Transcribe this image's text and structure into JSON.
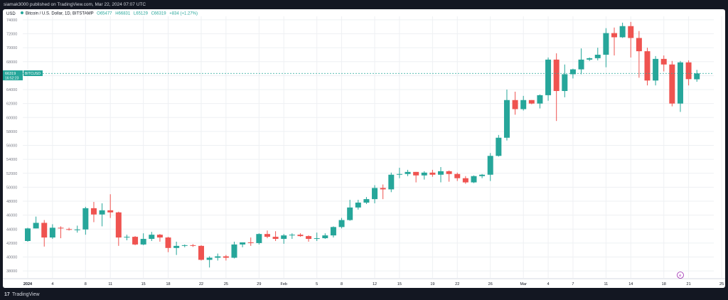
{
  "header": {
    "publish_text": "siamak3000 published on TradingView.com, Mar 22, 2024 07:07 UTC"
  },
  "legend": {
    "title": "Bitcoin / U.S. Dollar, 1D, BITSTAMP",
    "open": "O65477",
    "high": "H66831",
    "low": "L65129",
    "close": "C66319",
    "change": "+834 (+1.27%)"
  },
  "currency_label": "USD",
  "price_tag": {
    "value": "66319",
    "countdown": "16:52:23",
    "symbol": "BITCUSD"
  },
  "watermark_label": "e",
  "footer": {
    "logo": "17",
    "brand": "TradingView"
  },
  "colors": {
    "up": "#26a69a",
    "down": "#ef5350",
    "grid": "#eef0f3",
    "text": "#787b86",
    "price_line": "#26a69a",
    "tag": "#26a69a"
  },
  "chart_data": {
    "type": "candlestick",
    "ylim": [
      37000,
      74500
    ],
    "y_ticks": [
      38000,
      40000,
      42000,
      44000,
      46000,
      48000,
      50000,
      52000,
      54000,
      56000,
      58000,
      60000,
      62000,
      64000,
      66000,
      68000,
      70000,
      72000,
      74000
    ],
    "x_ticks": [
      {
        "label": "2024",
        "day": 0
      },
      {
        "label": "4",
        "day": 3
      },
      {
        "label": "8",
        "day": 7
      },
      {
        "label": "11",
        "day": 10
      },
      {
        "label": "15",
        "day": 14
      },
      {
        "label": "18",
        "day": 17
      },
      {
        "label": "22",
        "day": 21
      },
      {
        "label": "25",
        "day": 24
      },
      {
        "label": "29",
        "day": 28
      },
      {
        "label": "Feb",
        "day": 31
      },
      {
        "label": "5",
        "day": 35
      },
      {
        "label": "8",
        "day": 38
      },
      {
        "label": "12",
        "day": 42
      },
      {
        "label": "15",
        "day": 45
      },
      {
        "label": "19",
        "day": 49
      },
      {
        "label": "22",
        "day": 52
      },
      {
        "label": "26",
        "day": 56
      },
      {
        "label": "Mar",
        "day": 60
      },
      {
        "label": "4",
        "day": 63
      },
      {
        "label": "7",
        "day": 66
      },
      {
        "label": "11",
        "day": 70
      },
      {
        "label": "14",
        "day": 73
      },
      {
        "label": "18",
        "day": 77
      },
      {
        "label": "21",
        "day": 80
      },
      {
        "label": "25",
        "day": 84
      }
    ],
    "last_price": 66319,
    "candles": [
      {
        "date": "2024-01-01",
        "o": 42300,
        "h": 44200,
        "l": 42200,
        "c": 44100
      },
      {
        "date": "2024-01-02",
        "o": 44100,
        "h": 45800,
        "l": 44100,
        "c": 44900
      },
      {
        "date": "2024-01-03",
        "o": 44900,
        "h": 45300,
        "l": 41500,
        "c": 42800
      },
      {
        "date": "2024-01-04",
        "o": 42800,
        "h": 44700,
        "l": 42600,
        "c": 44200
      },
      {
        "date": "2024-01-05",
        "o": 44200,
        "h": 44400,
        "l": 42700,
        "c": 44100
      },
      {
        "date": "2024-01-06",
        "o": 44000,
        "h": 44200,
        "l": 43800,
        "c": 43900
      },
      {
        "date": "2024-01-07",
        "o": 43900,
        "h": 44500,
        "l": 43500,
        "c": 43950
      },
      {
        "date": "2024-01-08",
        "o": 43950,
        "h": 47200,
        "l": 43200,
        "c": 47000
      },
      {
        "date": "2024-01-09",
        "o": 47000,
        "h": 47900,
        "l": 45000,
        "c": 46100
      },
      {
        "date": "2024-01-10",
        "o": 46100,
        "h": 47700,
        "l": 44400,
        "c": 46700
      },
      {
        "date": "2024-01-11",
        "o": 46700,
        "h": 49000,
        "l": 45600,
        "c": 46400
      },
      {
        "date": "2024-01-12",
        "o": 46400,
        "h": 46500,
        "l": 41600,
        "c": 42800
      },
      {
        "date": "2024-01-13",
        "o": 42800,
        "h": 43200,
        "l": 42400,
        "c": 42900
      },
      {
        "date": "2024-01-14",
        "o": 42900,
        "h": 43000,
        "l": 41700,
        "c": 41800
      },
      {
        "date": "2024-01-15",
        "o": 41800,
        "h": 43400,
        "l": 41700,
        "c": 42600
      },
      {
        "date": "2024-01-16",
        "o": 42600,
        "h": 43600,
        "l": 42300,
        "c": 43200
      },
      {
        "date": "2024-01-17",
        "o": 43200,
        "h": 43300,
        "l": 42200,
        "c": 42800
      },
      {
        "date": "2024-01-18",
        "o": 42800,
        "h": 42900,
        "l": 40700,
        "c": 41300
      },
      {
        "date": "2024-01-19",
        "o": 41300,
        "h": 42200,
        "l": 40300,
        "c": 41600
      },
      {
        "date": "2024-01-20",
        "o": 41600,
        "h": 41800,
        "l": 41400,
        "c": 41700
      },
      {
        "date": "2024-01-21",
        "o": 41700,
        "h": 41850,
        "l": 41450,
        "c": 41600
      },
      {
        "date": "2024-01-22",
        "o": 41600,
        "h": 41700,
        "l": 39500,
        "c": 39600
      },
      {
        "date": "2024-01-23",
        "o": 39600,
        "h": 40100,
        "l": 38500,
        "c": 39900
      },
      {
        "date": "2024-01-24",
        "o": 39900,
        "h": 40500,
        "l": 39500,
        "c": 40100
      },
      {
        "date": "2024-01-25",
        "o": 40100,
        "h": 40300,
        "l": 39500,
        "c": 39900
      },
      {
        "date": "2024-01-26",
        "o": 39900,
        "h": 42200,
        "l": 39800,
        "c": 41800
      },
      {
        "date": "2024-01-27",
        "o": 41800,
        "h": 42100,
        "l": 41400,
        "c": 42100
      },
      {
        "date": "2024-01-28",
        "o": 42100,
        "h": 42800,
        "l": 41600,
        "c": 42000
      },
      {
        "date": "2024-01-29",
        "o": 42000,
        "h": 43400,
        "l": 41800,
        "c": 43300
      },
      {
        "date": "2024-01-30",
        "o": 43300,
        "h": 43800,
        "l": 42700,
        "c": 42900
      },
      {
        "date": "2024-01-31",
        "o": 42900,
        "h": 43700,
        "l": 42300,
        "c": 42600
      },
      {
        "date": "2024-02-01",
        "o": 42600,
        "h": 43300,
        "l": 41900,
        "c": 43100
      },
      {
        "date": "2024-02-02",
        "o": 43100,
        "h": 43400,
        "l": 42600,
        "c": 43200
      },
      {
        "date": "2024-02-03",
        "o": 43200,
        "h": 43400,
        "l": 42900,
        "c": 43000
      },
      {
        "date": "2024-02-04",
        "o": 43000,
        "h": 43100,
        "l": 42200,
        "c": 42600
      },
      {
        "date": "2024-02-05",
        "o": 42600,
        "h": 43500,
        "l": 42300,
        "c": 42700
      },
      {
        "date": "2024-02-06",
        "o": 42700,
        "h": 43400,
        "l": 42600,
        "c": 43100
      },
      {
        "date": "2024-02-07",
        "o": 43100,
        "h": 44400,
        "l": 42800,
        "c": 44300
      },
      {
        "date": "2024-02-08",
        "o": 44300,
        "h": 45600,
        "l": 44100,
        "c": 45300
      },
      {
        "date": "2024-02-09",
        "o": 45300,
        "h": 48200,
        "l": 45200,
        "c": 47100
      },
      {
        "date": "2024-02-10",
        "o": 47100,
        "h": 48200,
        "l": 46800,
        "c": 47800
      },
      {
        "date": "2024-02-11",
        "o": 47800,
        "h": 48600,
        "l": 47600,
        "c": 48300
      },
      {
        "date": "2024-02-12",
        "o": 48300,
        "h": 50300,
        "l": 47700,
        "c": 49900
      },
      {
        "date": "2024-02-13",
        "o": 49900,
        "h": 50400,
        "l": 48300,
        "c": 49700
      },
      {
        "date": "2024-02-14",
        "o": 49700,
        "h": 52100,
        "l": 49300,
        "c": 51800
      },
      {
        "date": "2024-02-15",
        "o": 51800,
        "h": 52800,
        "l": 51300,
        "c": 51900
      },
      {
        "date": "2024-02-16",
        "o": 51900,
        "h": 52500,
        "l": 51600,
        "c": 52200
      },
      {
        "date": "2024-02-17",
        "o": 52200,
        "h": 52200,
        "l": 50700,
        "c": 51700
      },
      {
        "date": "2024-02-18",
        "o": 51700,
        "h": 52300,
        "l": 51100,
        "c": 52100
      },
      {
        "date": "2024-02-19",
        "o": 52100,
        "h": 52500,
        "l": 51500,
        "c": 51800
      },
      {
        "date": "2024-02-20",
        "o": 51800,
        "h": 52900,
        "l": 50700,
        "c": 52300
      },
      {
        "date": "2024-02-21",
        "o": 52300,
        "h": 52400,
        "l": 50800,
        "c": 51900
      },
      {
        "date": "2024-02-22",
        "o": 51900,
        "h": 52100,
        "l": 50900,
        "c": 51300
      },
      {
        "date": "2024-02-23",
        "o": 51300,
        "h": 51600,
        "l": 50500,
        "c": 50700
      },
      {
        "date": "2024-02-24",
        "o": 50700,
        "h": 51700,
        "l": 50600,
        "c": 51600
      },
      {
        "date": "2024-02-25",
        "o": 51600,
        "h": 51900,
        "l": 51300,
        "c": 51800
      },
      {
        "date": "2024-02-26",
        "o": 51800,
        "h": 54900,
        "l": 50900,
        "c": 54500
      },
      {
        "date": "2024-02-27",
        "o": 54500,
        "h": 57500,
        "l": 54400,
        "c": 57100
      },
      {
        "date": "2024-02-28",
        "o": 57100,
        "h": 64000,
        "l": 56700,
        "c": 62500
      },
      {
        "date": "2024-02-29",
        "o": 62500,
        "h": 63700,
        "l": 60400,
        "c": 61200
      },
      {
        "date": "2024-03-01",
        "o": 61200,
        "h": 63100,
        "l": 61000,
        "c": 62500
      },
      {
        "date": "2024-03-02",
        "o": 62500,
        "h": 62500,
        "l": 61900,
        "c": 62000
      },
      {
        "date": "2024-03-03",
        "o": 62000,
        "h": 63300,
        "l": 61300,
        "c": 63200
      },
      {
        "date": "2024-03-04",
        "o": 63200,
        "h": 68600,
        "l": 62400,
        "c": 68300
      },
      {
        "date": "2024-03-05",
        "o": 68300,
        "h": 69200,
        "l": 59500,
        "c": 63800
      },
      {
        "date": "2024-03-06",
        "o": 63800,
        "h": 67600,
        "l": 62900,
        "c": 66200
      },
      {
        "date": "2024-03-07",
        "o": 66200,
        "h": 67000,
        "l": 65600,
        "c": 66900
      },
      {
        "date": "2024-03-08",
        "o": 66900,
        "h": 69900,
        "l": 66200,
        "c": 68300
      },
      {
        "date": "2024-03-09",
        "o": 68300,
        "h": 68600,
        "l": 68100,
        "c": 68500
      },
      {
        "date": "2024-03-10",
        "o": 68500,
        "h": 70000,
        "l": 68200,
        "c": 69000
      },
      {
        "date": "2024-03-11",
        "o": 69000,
        "h": 72800,
        "l": 67200,
        "c": 72100
      },
      {
        "date": "2024-03-12",
        "o": 72100,
        "h": 72900,
        "l": 68900,
        "c": 71500
      },
      {
        "date": "2024-03-13",
        "o": 71500,
        "h": 73600,
        "l": 71400,
        "c": 73100
      },
      {
        "date": "2024-03-14",
        "o": 73100,
        "h": 73700,
        "l": 68600,
        "c": 71400
      },
      {
        "date": "2024-03-15",
        "o": 71400,
        "h": 72400,
        "l": 65700,
        "c": 69500
      },
      {
        "date": "2024-03-16",
        "o": 69500,
        "h": 70000,
        "l": 64600,
        "c": 65300
      },
      {
        "date": "2024-03-17",
        "o": 65300,
        "h": 68800,
        "l": 64600,
        "c": 68400
      },
      {
        "date": "2024-03-18",
        "o": 68400,
        "h": 68900,
        "l": 66600,
        "c": 67600
      },
      {
        "date": "2024-03-19",
        "o": 67600,
        "h": 68100,
        "l": 61600,
        "c": 62000
      },
      {
        "date": "2024-03-20",
        "o": 62000,
        "h": 68100,
        "l": 60800,
        "c": 67900
      },
      {
        "date": "2024-03-21",
        "o": 67900,
        "h": 68200,
        "l": 64600,
        "c": 65500
      },
      {
        "date": "2024-03-22",
        "o": 65477,
        "h": 66831,
        "l": 65129,
        "c": 66319
      }
    ]
  }
}
